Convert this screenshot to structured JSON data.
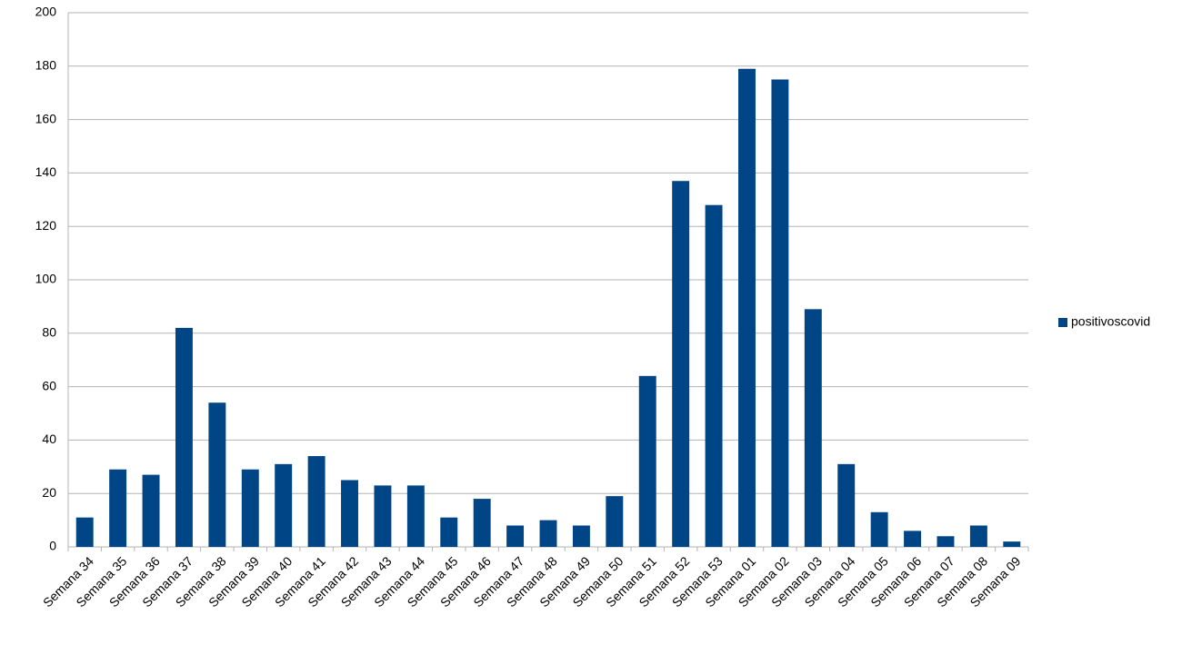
{
  "chart_data": {
    "type": "bar",
    "categories": [
      "Semana 34",
      "Semana 35",
      "Semana 36",
      "Semana 37",
      "Semana 38",
      "Semana 39",
      "Semana 40",
      "Semana 41",
      "Semana 42",
      "Semana 43",
      "Semana 44",
      "Semana 45",
      "Semana 46",
      "Semana 47",
      "Semana 48",
      "Semana 49",
      "Semana 50",
      "Semana 51",
      "Semana 52",
      "Semana 53",
      "Semana 01",
      "Semana 02",
      "Semana 03",
      "Semana 04",
      "Semana 05",
      "Semana 06",
      "Semana 07",
      "Semana 08",
      "Semana 09"
    ],
    "series": [
      {
        "name": "positivoscovid",
        "color": "#004586",
        "values": [
          11,
          29,
          27,
          82,
          54,
          29,
          31,
          34,
          25,
          23,
          23,
          11,
          18,
          8,
          10,
          8,
          19,
          64,
          137,
          128,
          179,
          175,
          89,
          31,
          13,
          6,
          4,
          8,
          2
        ]
      }
    ],
    "ylim": [
      0,
      200
    ],
    "yticks": [
      0,
      20,
      40,
      60,
      80,
      100,
      120,
      140,
      160,
      180,
      200
    ],
    "grid": true,
    "legend": "right"
  }
}
